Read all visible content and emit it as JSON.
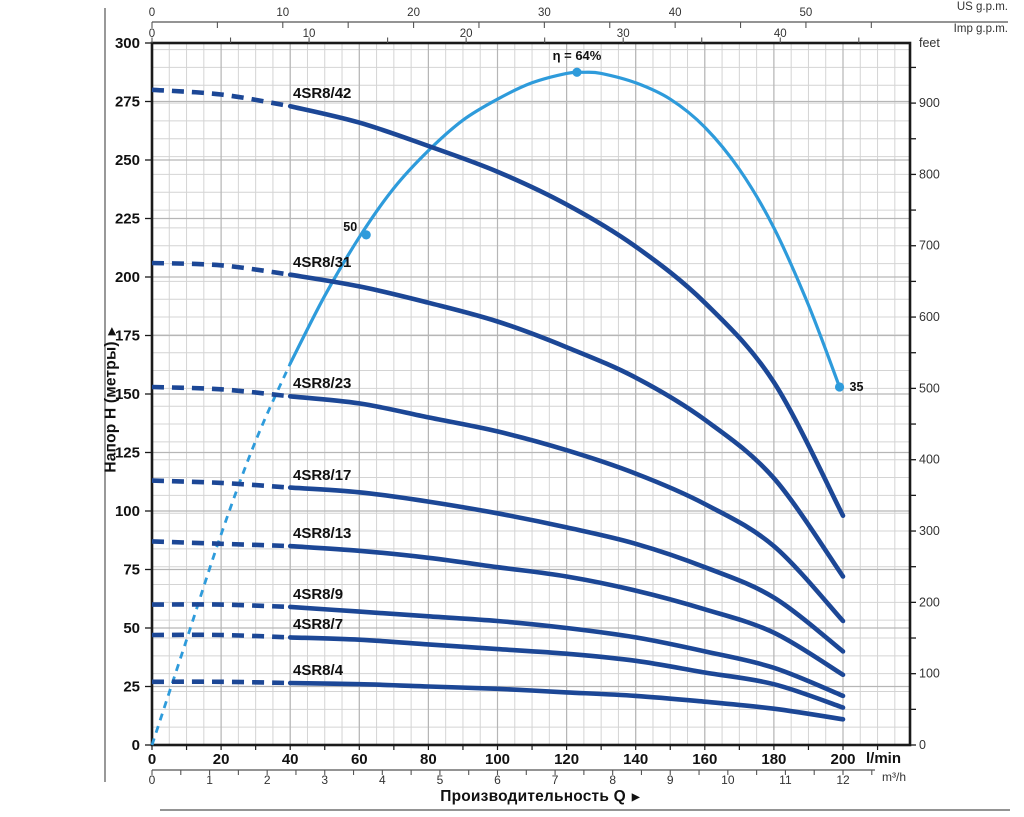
{
  "figure": {
    "x_axis_title": "Производительность Q",
    "y_axis_title": "Напор H (метры)",
    "arrow_right": "▶",
    "units": {
      "us_gpm": "US g.p.m.",
      "imp_gpm": "Imp g.p.m.",
      "feet": "feet",
      "lmin": "l/min",
      "m3h": "m³/h"
    }
  },
  "chart_data": {
    "type": "line",
    "title": "",
    "xlabel": "Производительность Q",
    "ylabel": "Напор H (метры)",
    "x_unit_primary": "l/min",
    "x_unit_secondary_bottom": "m³/h",
    "x_units_top": [
      "US g.p.m.",
      "Imp g.p.m."
    ],
    "y_unit_right": "feet",
    "x_range_lmin": [
      0,
      220
    ],
    "y_range_m": [
      0,
      300
    ],
    "grid": true,
    "dashed_below_q_lmin": 40,
    "ticks": {
      "left_head_m": [
        0,
        25,
        50,
        75,
        100,
        125,
        150,
        175,
        200,
        225,
        250,
        275,
        300
      ],
      "right_feet": [
        0,
        100,
        200,
        300,
        400,
        500,
        600,
        700,
        800,
        900
      ],
      "bottom_lmin": [
        0,
        20,
        40,
        60,
        80,
        100,
        120,
        140,
        160,
        180,
        200
      ],
      "bottom_m3h": [
        0,
        1,
        2,
        3,
        4,
        5,
        6,
        7,
        8,
        9,
        10,
        11,
        12
      ],
      "top_us_gpm": [
        0,
        10,
        20,
        30,
        40,
        50
      ],
      "top_imp_gpm": [
        0,
        10,
        20,
        30,
        40
      ]
    },
    "q_lmin": [
      0,
      20,
      40,
      60,
      80,
      100,
      120,
      140,
      160,
      180,
      200
    ],
    "series": [
      {
        "name": "4SR8/42",
        "head_m": [
          280,
          278,
          273,
          266,
          256,
          245,
          231,
          213,
          189,
          155,
          98
        ]
      },
      {
        "name": "4SR8/31",
        "head_m": [
          206,
          205,
          201,
          196,
          189,
          181,
          170,
          157,
          139,
          114,
          72
        ]
      },
      {
        "name": "4SR8/23",
        "head_m": [
          153,
          152,
          149,
          146,
          140,
          134,
          126,
          116,
          103,
          85,
          53
        ]
      },
      {
        "name": "4SR8/17",
        "head_m": [
          113,
          112,
          110,
          108,
          104,
          99,
          93,
          86,
          76,
          63,
          40
        ]
      },
      {
        "name": "4SR8/13",
        "head_m": [
          87,
          86,
          85,
          83,
          80,
          76,
          72,
          66,
          58,
          48,
          30
        ]
      },
      {
        "name": "4SR8/9",
        "head_m": [
          60,
          60,
          59,
          57,
          55,
          53,
          50,
          46,
          40,
          33,
          21
        ]
      },
      {
        "name": "4SR8/7",
        "head_m": [
          47,
          47,
          46,
          45,
          43,
          41,
          39,
          36,
          31,
          26,
          16
        ]
      },
      {
        "name": "4SR8/4",
        "head_m": [
          27,
          27,
          26.5,
          26,
          25,
          24,
          22.5,
          21,
          18.5,
          15.5,
          11
        ]
      }
    ],
    "efficiency_curve": {
      "name": "efficiency",
      "peak_label": "η = 64%",
      "peak_efficiency_pct": 64,
      "q_lmin": [
        0,
        10,
        20,
        30,
        40,
        50,
        60,
        70,
        80,
        90,
        100,
        110,
        120,
        125,
        130,
        140,
        150,
        160,
        170,
        180,
        190,
        199
      ],
      "display_head_m": [
        0,
        45,
        90,
        130,
        163,
        192,
        217,
        238,
        254,
        267,
        276,
        283,
        287,
        287.5,
        287,
        283,
        276,
        264,
        246,
        221,
        188,
        153
      ],
      "marked_points": [
        {
          "q_lmin": 62,
          "display_head_m": 218,
          "label": "50",
          "label_position": "left"
        },
        {
          "q_lmin": 123,
          "display_head_m": 287.5,
          "label": "η = 64%",
          "label_position": "top"
        },
        {
          "q_lmin": 199,
          "display_head_m": 153,
          "label": "35",
          "label_position": "right"
        }
      ]
    }
  },
  "colors": {
    "curve_navy": "#1c4796",
    "efficiency_cyan": "#2e9bdb",
    "grid_minor": "#d4d4d4",
    "grid_major": "#b6b6b6",
    "axis": "#1a1a1a",
    "muted_text": "#333333"
  }
}
